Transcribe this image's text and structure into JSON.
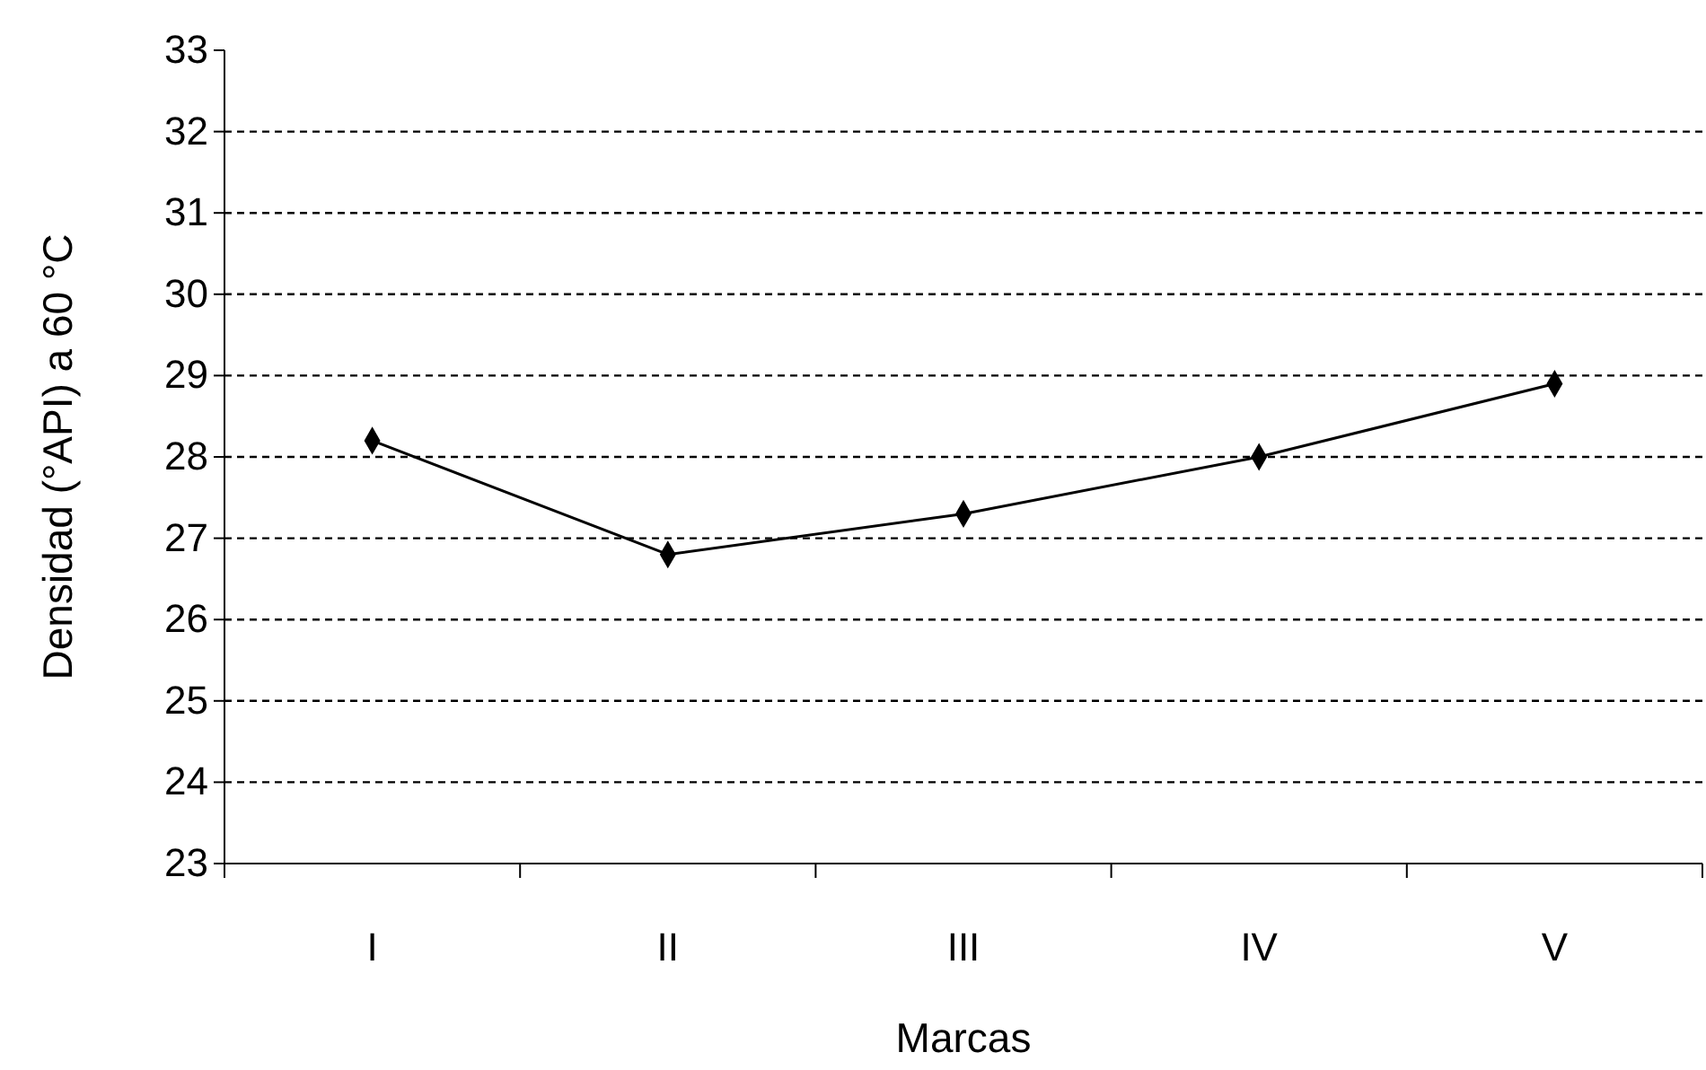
{
  "chart_data": {
    "type": "line",
    "xlabel": "Marcas",
    "ylabel": "Densidad (°API) a 60 °C",
    "categories": [
      "I",
      "II",
      "III",
      "IV",
      "V"
    ],
    "series": [
      {
        "color": "#000000",
        "values": [
          28.2,
          26.8,
          27.3,
          28.0,
          28.9
        ]
      }
    ],
    "ylim": [
      23,
      33
    ],
    "yticks": [
      23,
      24,
      25,
      26,
      27,
      28,
      29,
      30,
      31,
      32,
      33
    ],
    "grid": "y",
    "marker": "diamond",
    "line_style": "solid"
  }
}
